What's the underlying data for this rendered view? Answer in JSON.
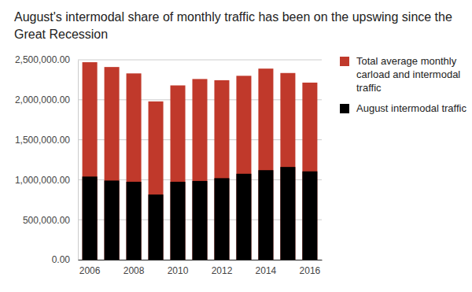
{
  "chart_data": {
    "type": "bar",
    "title": "August's intermodal share of monthly traffic has been on the upswing since the Great Recession",
    "categories": [
      "2006",
      null,
      "2008",
      null,
      "2010",
      null,
      "2012",
      null,
      "2014",
      null,
      "2016"
    ],
    "series": [
      {
        "name": "Total average monthly carload and intermodal traffic",
        "color": "#c0392b",
        "values": [
          2470000,
          2410000,
          2330000,
          1980000,
          2180000,
          2260000,
          2245000,
          2300000,
          2390000,
          2335000,
          2215000
        ]
      },
      {
        "name": "August intermodal traffic",
        "color": "#000000",
        "values": [
          1040000,
          990000,
          975000,
          815000,
          975000,
          985000,
          1020000,
          1075000,
          1120000,
          1160000,
          1105000
        ]
      }
    ],
    "stacked": false,
    "ylim": [
      0,
      2500000
    ],
    "yticks": [
      {
        "value": 0,
        "label": "0.00"
      },
      {
        "value": 500000,
        "label": "500,000.00"
      },
      {
        "value": 1000000,
        "label": "1,000,000.00"
      },
      {
        "value": 1500000,
        "label": "1,500,000.00"
      },
      {
        "value": 2000000,
        "label": "2,000,000.00"
      },
      {
        "value": 2500000,
        "label": "2,500,000.00"
      }
    ],
    "grid": true,
    "legend": "right"
  }
}
